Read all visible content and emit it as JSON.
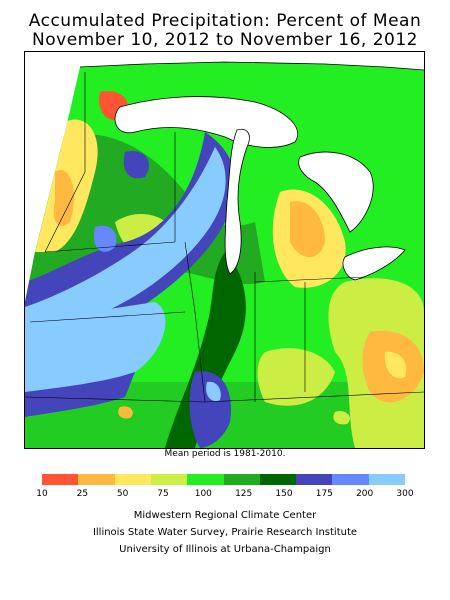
{
  "header": {
    "title_line1": "Accumulated Precipitation: Percent of Mean",
    "title_line2": "November 10, 2012 to November 16, 2012"
  },
  "map": {
    "note": "Mean period is 1981-2010.",
    "background": "#22cc22"
  },
  "legend": {
    "colors": [
      "#ff5533",
      "#ffb840",
      "#ffe860",
      "#ccee44",
      "#22ee22",
      "#22aa22",
      "#006600",
      "#4444bb",
      "#6688ff",
      "#88ccff"
    ],
    "ticks": [
      "10",
      "25",
      "50",
      "75",
      "100",
      "125",
      "150",
      "175",
      "200",
      "300"
    ]
  },
  "credits": {
    "line1": "Midwestern Regional Climate Center",
    "line2": "Illinois State Water Survey, Prairie Research Institute",
    "line3": "University of Illinois at Urbana-Champaign"
  }
}
